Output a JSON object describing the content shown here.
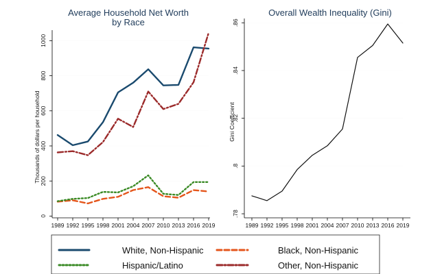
{
  "chart_data": [
    {
      "type": "line",
      "title_lines": [
        "Average Household Net Worth",
        "by Race"
      ],
      "xlabel": "",
      "ylabel": "Thousands of dollars per household",
      "x": [
        1989,
        1992,
        1995,
        1998,
        2001,
        2004,
        2007,
        2010,
        2013,
        2016,
        2019
      ],
      "x_tick_labels": [
        "1989",
        "1992",
        "1995",
        "1998",
        "2001",
        "2004",
        "2007",
        "2010",
        "2013",
        "2016",
        "2019"
      ],
      "yticks": [
        0,
        200,
        400,
        600,
        800,
        1000
      ],
      "y_tick_labels": [
        "0",
        "200",
        "400",
        "600",
        "800",
        "1000"
      ],
      "ylim": [
        -10,
        1060
      ],
      "series": [
        {
          "name": "White, Non-Hispanic",
          "key": "white",
          "color": "#1a4a6e",
          "dash": "solid",
          "values": [
            462,
            404,
            425,
            535,
            705,
            760,
            837,
            745,
            748,
            962,
            955
          ]
        },
        {
          "name": "Black, Non-Hispanic",
          "key": "black",
          "color": "#e4551b",
          "dash": "dashed",
          "values": [
            82,
            90,
            72,
            98,
            110,
            148,
            165,
            113,
            105,
            148,
            140
          ]
        },
        {
          "name": "Hispanic/Latino",
          "key": "hispanic",
          "color": "#3a8a25",
          "dash": "dotted",
          "values": [
            85,
            98,
            103,
            138,
            135,
            170,
            232,
            127,
            120,
            194,
            194
          ]
        },
        {
          "name": "Other, Non-Hispanic",
          "key": "other",
          "color": "#9b2a2a",
          "dash": "dashdot",
          "values": [
            363,
            370,
            347,
            422,
            555,
            508,
            710,
            610,
            640,
            763,
            1045
          ]
        }
      ]
    },
    {
      "type": "line",
      "title_lines": [
        "Overall Wealth Inequality (Gini)"
      ],
      "xlabel": "",
      "ylabel": "Gini Coefficient",
      "x": [
        1989,
        1992,
        1995,
        1998,
        2001,
        2004,
        2007,
        2010,
        2013,
        2016,
        2019
      ],
      "x_tick_labels": [
        "1989",
        "1992",
        "1995",
        "1998",
        "2001",
        "2004",
        "2007",
        "2010",
        "2013",
        "2016",
        "2019"
      ],
      "yticks": [
        0.78,
        0.8,
        0.82,
        0.84,
        0.86
      ],
      "y_tick_labels": [
        ".78",
        ".8",
        ".82",
        ".84",
        ".86"
      ],
      "ylim": [
        0.7783,
        0.8618
      ],
      "series": [
        {
          "name": "Gini Coefficient",
          "key": "gini",
          "color": "#111111",
          "dash": "solid",
          "values": [
            0.7875,
            0.7855,
            0.7895,
            0.7985,
            0.8045,
            0.8085,
            0.8155,
            0.8455,
            0.8505,
            0.8595,
            0.8515
          ]
        }
      ]
    }
  ],
  "legend": {
    "items": [
      {
        "label": "White, Non-Hispanic",
        "color": "#1a4a6e",
        "dash": "solid"
      },
      {
        "label": "Black, Non-Hispanic",
        "color": "#e4551b",
        "dash": "dashed"
      },
      {
        "label": "Hispanic/Latino",
        "color": "#3a8a25",
        "dash": "dotted"
      },
      {
        "label": "Other, Non-Hispanic",
        "color": "#9b2a2a",
        "dash": "dashdot"
      }
    ]
  }
}
